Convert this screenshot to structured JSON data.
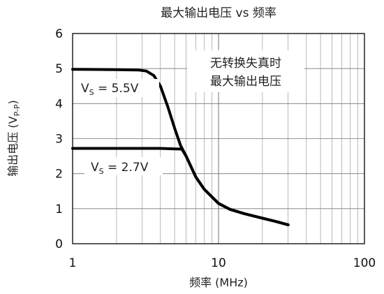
{
  "chart_data": {
    "type": "line",
    "title": "最大输出电压 vs 频率",
    "xlabel": "频率 (MHz)",
    "ylabel": {
      "main": "输出电压 (V",
      "sub": "P-P",
      "close": ")"
    },
    "x_scale": "log",
    "xlim": [
      1,
      100
    ],
    "ylim": [
      0,
      6
    ],
    "x_ticks": [
      1,
      10,
      100
    ],
    "y_ticks": [
      0,
      1,
      2,
      3,
      4,
      5,
      6
    ],
    "grid": true,
    "annotation": [
      "无转换失真时",
      "最大输出电压"
    ],
    "series": [
      {
        "label": {
          "v": "V",
          "sub": "S",
          "value": " = 5.5V"
        },
        "x": [
          1,
          2,
          2.8,
          3.2,
          3.6,
          4.0,
          4.5,
          5.0,
          5.5,
          6.0,
          7.0,
          8.0,
          10.0,
          12.0,
          15.0,
          20.0,
          25.0,
          30.0
        ],
        "y": [
          4.98,
          4.97,
          4.96,
          4.93,
          4.8,
          4.5,
          3.9,
          3.3,
          2.8,
          2.5,
          1.9,
          1.55,
          1.15,
          0.98,
          0.86,
          0.73,
          0.63,
          0.54
        ]
      },
      {
        "label": {
          "v": "V",
          "sub": "S",
          "value": " = 2.7V"
        },
        "x": [
          1,
          2,
          4,
          5.6,
          6.0,
          7.0,
          8.0,
          10.0,
          12.0,
          15.0,
          20.0,
          25.0,
          30.0
        ],
        "y": [
          2.72,
          2.72,
          2.72,
          2.7,
          2.5,
          1.9,
          1.55,
          1.15,
          0.98,
          0.86,
          0.73,
          0.63,
          0.54
        ]
      }
    ]
  }
}
